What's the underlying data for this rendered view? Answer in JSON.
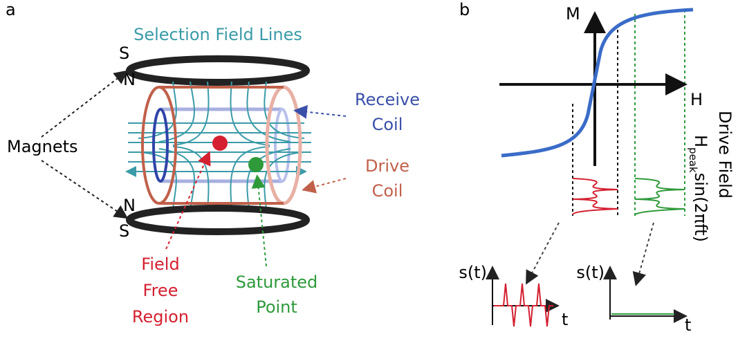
{
  "panel_a": {
    "label": "a",
    "title": "Selection Field Lines",
    "poles": {
      "top_outer": "S",
      "top_inner": "N",
      "bottom_inner": "N",
      "bottom_outer": "S"
    },
    "magnets": "Magnets",
    "receive_coil": [
      "Receive",
      "Coil"
    ],
    "drive_coil": [
      "Drive",
      "Coil"
    ],
    "field_free_region": [
      "Field",
      "Free",
      "Region"
    ],
    "saturated_point": [
      "Saturated",
      "Point"
    ]
  },
  "panel_b": {
    "label": "b",
    "y_axis": "M",
    "x_axis": "H",
    "drive_field": {
      "title": "Drive Field",
      "symbol": "H",
      "subscript": "peak",
      "expression": "sin(2πft)"
    },
    "signal_left": {
      "y_axis": "s(t)",
      "x_axis": "t"
    },
    "signal_right": {
      "y_axis": "s(t)",
      "x_axis": "t"
    }
  }
}
